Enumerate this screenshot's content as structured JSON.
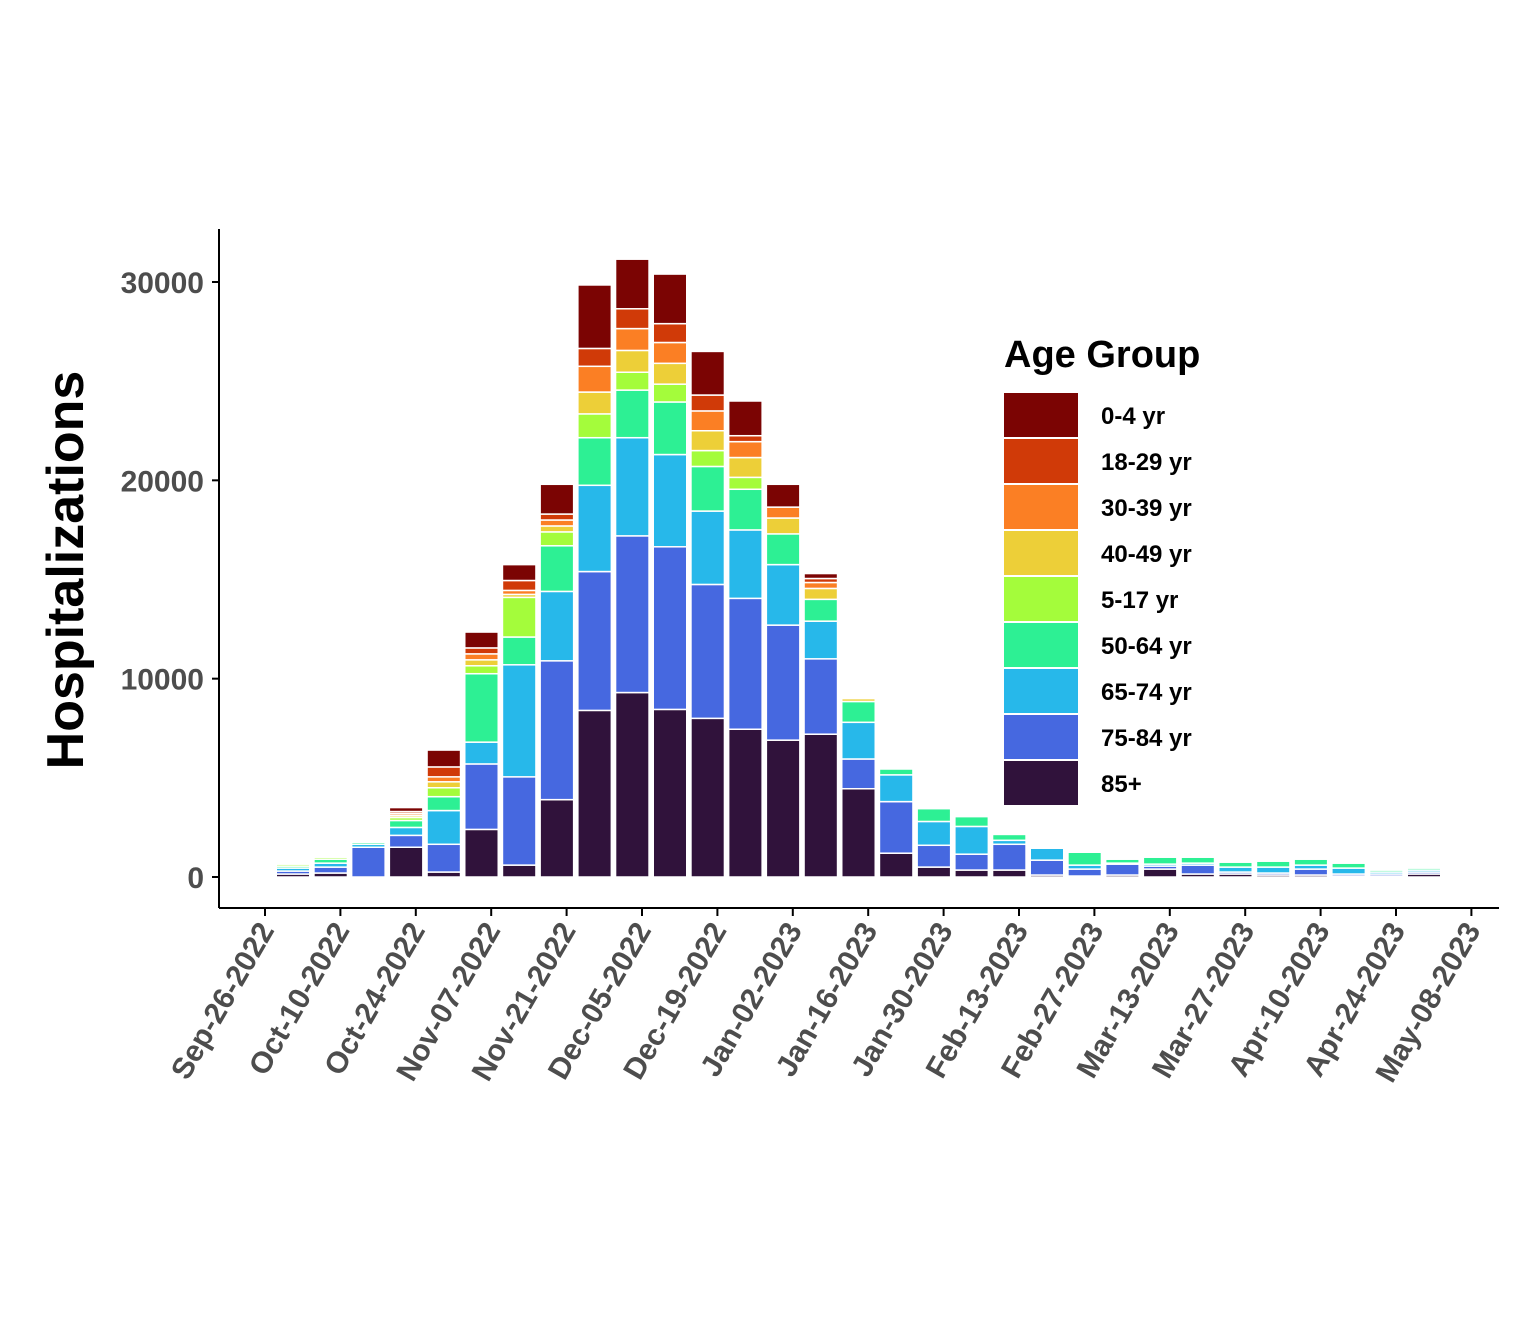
{
  "chart_data": {
    "type": "bar",
    "stacked": true,
    "title": "",
    "xlabel": "",
    "ylabel": "Hospitalizations",
    "ylim": [
      0,
      32500
    ],
    "y_ticks": [
      0,
      10000,
      20000,
      30000
    ],
    "x_tick_labels": [
      "Sep-26-2022",
      "Oct-10-2022",
      "Oct-24-2022",
      "Nov-07-2022",
      "Nov-21-2022",
      "Dec-05-2022",
      "Dec-19-2022",
      "Jan-02-2023",
      "Jan-16-2023",
      "Jan-30-2023",
      "Feb-13-2023",
      "Feb-27-2023",
      "Mar-13-2023",
      "Mar-27-2023",
      "Apr-10-2023",
      "Apr-24-2023",
      "May-08-2023"
    ],
    "categories": [
      "Oct-02-2022",
      "Oct-09-2022",
      "Oct-16-2022",
      "Oct-23-2022",
      "Oct-30-2022",
      "Nov-06-2022",
      "Nov-13-2022",
      "Nov-20-2022",
      "Nov-27-2022",
      "Dec-04-2022",
      "Dec-11-2022",
      "Dec-18-2022",
      "Dec-25-2022",
      "Jan-01-2023",
      "Jan-08-2023",
      "Jan-15-2023",
      "Jan-22-2023",
      "Jan-29-2023",
      "Feb-05-2023",
      "Feb-12-2023",
      "Feb-19-2023",
      "Feb-26-2023",
      "Mar-05-2023",
      "Mar-12-2023",
      "Mar-19-2023",
      "Mar-26-2023",
      "Apr-02-2023",
      "Apr-09-2023",
      "Apr-16-2023",
      "Apr-23-2023",
      "Apr-30-2023"
    ],
    "legend_title": "Age Group",
    "legend_position": "right-inside",
    "series": [
      {
        "name": "85+",
        "color": "#30123b",
        "values": [
          150,
          200,
          0,
          1500,
          250,
          2400,
          600,
          3900,
          8400,
          9300,
          8450,
          8000,
          7450,
          6900,
          7200,
          4450,
          1200,
          500,
          350,
          350,
          100,
          50,
          100,
          400,
          150,
          150,
          100,
          100,
          50,
          50,
          150
        ]
      },
      {
        "name": "75-84 yr",
        "color": "#4668e0",
        "values": [
          150,
          300,
          1500,
          600,
          1400,
          3300,
          4450,
          7000,
          7000,
          7900,
          8200,
          6750,
          6600,
          5800,
          3800,
          1500,
          2600,
          1100,
          800,
          1300,
          750,
          350,
          550,
          150,
          450,
          100,
          100,
          300,
          100,
          100,
          100
        ]
      },
      {
        "name": "65-74 yr",
        "color": "#27b8ea",
        "values": [
          150,
          200,
          150,
          400,
          1700,
          1100,
          5650,
          3500,
          4350,
          4950,
          4650,
          3700,
          3450,
          3050,
          1900,
          1850,
          1350,
          1200,
          1400,
          200,
          600,
          200,
          50,
          100,
          100,
          250,
          300,
          200,
          300,
          100,
          100
        ]
      },
      {
        "name": "50-64 yr",
        "color": "#2df094",
        "values": [
          100,
          200,
          100,
          350,
          700,
          3450,
          1400,
          2300,
          2400,
          2400,
          2650,
          2250,
          2050,
          1550,
          1100,
          1050,
          300,
          650,
          500,
          300,
          50,
          650,
          200,
          350,
          300,
          250,
          300,
          300,
          250,
          100,
          100
        ]
      },
      {
        "name": "5-17 yr",
        "color": "#a4fc3b",
        "values": [
          100,
          100,
          50,
          150,
          450,
          400,
          2000,
          700,
          1200,
          900,
          900,
          800,
          600,
          0,
          0,
          0,
          0,
          0,
          0,
          0,
          0,
          0,
          0,
          0,
          0,
          0,
          0,
          0,
          0,
          0,
          0
        ]
      },
      {
        "name": "40-49 yr",
        "color": "#edcf38",
        "values": [
          50,
          50,
          50,
          100,
          300,
          300,
          150,
          300,
          1100,
          1100,
          1050,
          1000,
          1000,
          800,
          550,
          150,
          50,
          50,
          50,
          50,
          0,
          50,
          50,
          50,
          50,
          50,
          50,
          50,
          50,
          50,
          50
        ]
      },
      {
        "name": "30-39 yr",
        "color": "#fb7f24",
        "values": [
          50,
          50,
          50,
          100,
          250,
          300,
          200,
          300,
          1300,
          1100,
          1050,
          1000,
          800,
          550,
          300,
          50,
          50,
          0,
          0,
          50,
          0,
          0,
          0,
          50,
          50,
          50,
          50,
          50,
          50,
          0,
          50
        ]
      },
      {
        "name": "18-29 yr",
        "color": "#d03a08",
        "values": [
          50,
          50,
          50,
          100,
          500,
          300,
          500,
          300,
          900,
          1000,
          950,
          800,
          300,
          0,
          200,
          0,
          50,
          0,
          0,
          50,
          0,
          0,
          50,
          0,
          50,
          50,
          0,
          0,
          50,
          0,
          0
        ]
      },
      {
        "name": "0-4 yr",
        "color": "#7b0403",
        "values": [
          50,
          50,
          0,
          200,
          850,
          800,
          800,
          1500,
          3200,
          2500,
          2500,
          2200,
          1750,
          1150,
          250,
          50,
          0,
          50,
          0,
          0,
          0,
          0,
          50,
          50,
          50,
          0,
          0,
          0,
          0,
          0,
          0
        ]
      }
    ]
  }
}
